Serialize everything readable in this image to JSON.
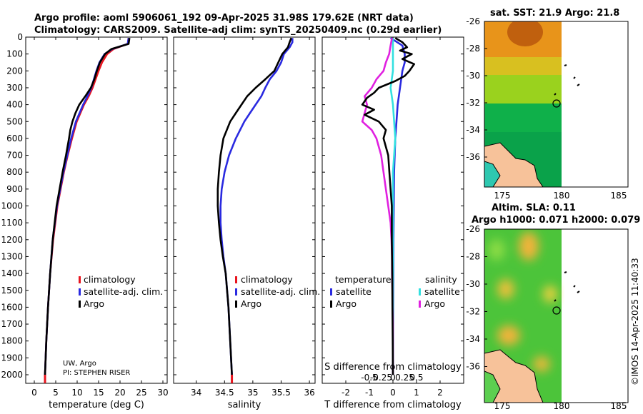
{
  "title": {
    "line1": "Argo profile: aoml 5906061_192 09-Apr-2025 31.98S 179.62E (NRT data)",
    "line2": "Climatology: CARS2009. Satellite-adj clim: synTS_20250409.nc (0.29d earlier)"
  },
  "credit": {
    "line1": "UW, Argo",
    "line2": "PI: STEPHEN RISER"
  },
  "footer": "©IMOS 14-Apr-2025 11:40:33",
  "colors": {
    "argo": "#000000",
    "clim": "#e8141e",
    "sat": "#2a2ae0",
    "sal_sat": "#33e0e0",
    "sal_diff": "#e020e0"
  },
  "chart_data": [
    {
      "id": "temperature",
      "type": "line",
      "xlabel": "temperature (deg C)",
      "xlim": [
        -2,
        31
      ],
      "xticks": [
        0,
        5,
        10,
        15,
        20,
        25,
        30
      ],
      "xtick_labels": [
        "0",
        "5",
        "10",
        "15",
        "20",
        "25",
        "30"
      ],
      "ylim": [
        0,
        2050
      ],
      "yticks": [
        0,
        100,
        200,
        300,
        400,
        500,
        600,
        700,
        800,
        900,
        1000,
        1100,
        1200,
        1300,
        1400,
        1500,
        1600,
        1700,
        1800,
        1900,
        2000
      ],
      "ytick_labels": [
        "0",
        "100",
        "200",
        "300",
        "400",
        "500",
        "600",
        "700",
        "800",
        "900",
        "1000",
        "1100",
        "1200",
        "1300",
        "1400",
        "1500",
        "1600",
        "1700",
        "1800",
        "1900",
        "2000"
      ],
      "legend": [
        "climatology",
        "satellite-adj. clim.",
        "Argo"
      ],
      "series": [
        {
          "name": "climatology",
          "color": "#e8141e",
          "depth": [
            5,
            40,
            70,
            100,
            150,
            200,
            250,
            300,
            350,
            400,
            500,
            600,
            700,
            800,
            1000,
            1200,
            1400,
            1600,
            1800,
            2000
          ],
          "values": [
            22,
            21.8,
            18.5,
            17,
            15.8,
            15,
            14.3,
            13.6,
            12.7,
            11.6,
            9.9,
            8.8,
            7.8,
            6.9,
            5.4,
            4.4,
            3.7,
            3.2,
            2.8,
            2.5
          ]
        },
        {
          "name": "satellite-adj. clim.",
          "color": "#2a2ae0",
          "depth": [
            5,
            40,
            70,
            100,
            150,
            200,
            250,
            300,
            350,
            400,
            500,
            600,
            700,
            800,
            1000,
            1200,
            1400,
            1600,
            1800,
            2000
          ],
          "values": [
            22,
            21.8,
            18.2,
            16.4,
            15.2,
            14.5,
            13.9,
            13.3,
            12.4,
            11.4,
            9.7,
            8.6,
            7.7,
            6.8,
            5.3,
            4.3,
            3.7,
            3.2,
            2.8,
            2.5
          ]
        },
        {
          "name": "Argo",
          "color": "#000000",
          "depth": [
            5,
            40,
            70,
            100,
            150,
            200,
            250,
            300,
            350,
            400,
            450,
            500,
            550,
            600,
            700,
            800,
            1000,
            1200,
            1400,
            1600,
            1800,
            2000
          ],
          "values": [
            22.2,
            22,
            18,
            16.5,
            15.3,
            14.6,
            14,
            13.2,
            11.9,
            10.5,
            9.6,
            8.9,
            8.4,
            8.1,
            7.4,
            6.6,
            5.2,
            4.3,
            3.7,
            3.2,
            2.8,
            2.5
          ]
        }
      ],
      "bottom_marker": {
        "value": 2.5,
        "depth": [
          2000,
          2050
        ]
      }
    },
    {
      "id": "salinity",
      "type": "line",
      "xlabel": "salinity",
      "xlim": [
        33.6,
        36.1
      ],
      "xticks": [
        34,
        34.5,
        35,
        35.5,
        36
      ],
      "xtick_labels": [
        "34",
        "34.5",
        "35",
        "35.5",
        "36"
      ],
      "ylim": [
        0,
        2050
      ],
      "legend": [
        "climatology",
        "satellite-adj. clim.",
        "Argo"
      ],
      "series": [
        {
          "name": "satellite-adj. clim.",
          "color": "#2a2ae0",
          "depth": [
            5,
            30,
            60,
            100,
            150,
            200,
            250,
            300,
            350,
            400,
            450,
            500,
            600,
            700,
            800,
            900,
            1000,
            1100,
            1200,
            1300,
            1400,
            1600,
            1800,
            2000
          ],
          "values": [
            35.7,
            35.7,
            35.65,
            35.55,
            35.5,
            35.42,
            35.3,
            35.22,
            35.15,
            35.05,
            34.95,
            34.85,
            34.7,
            34.58,
            34.5,
            34.45,
            34.43,
            34.43,
            34.45,
            34.48,
            34.52,
            34.57,
            34.6,
            34.63
          ]
        },
        {
          "name": "Argo",
          "color": "#000000",
          "depth": [
            5,
            30,
            60,
            100,
            150,
            200,
            250,
            300,
            350,
            400,
            450,
            500,
            600,
            700,
            800,
            900,
            1000,
            1100,
            1200,
            1300,
            1400,
            1600,
            1800,
            2000
          ],
          "values": [
            35.68,
            35.65,
            35.62,
            35.52,
            35.45,
            35.38,
            35.22,
            35.05,
            34.9,
            34.8,
            34.7,
            34.6,
            34.48,
            34.43,
            34.4,
            34.38,
            34.38,
            34.4,
            34.43,
            34.47,
            34.52,
            34.57,
            34.6,
            34.63
          ]
        }
      ],
      "bottom_marker": {
        "value": 34.63,
        "depth": [
          2000,
          2050
        ]
      }
    },
    {
      "id": "difference",
      "type": "line",
      "xlabel": "T difference from climatology",
      "xlabel_top": "S difference from climatology",
      "xlim": [
        -3,
        3
      ],
      "xticks": [
        -2,
        -1,
        0,
        1,
        2
      ],
      "xtick_labels": [
        "-2",
        "-1",
        "0",
        "1",
        "2"
      ],
      "s_ticks": [
        -0.5,
        -0.25,
        0,
        0.25,
        0.5
      ],
      "s_tick_labels": [
        "-0.5",
        "-0.25",
        "0",
        "0.25",
        "0.5"
      ],
      "s_scale": 2,
      "ylim": [
        0,
        2050
      ],
      "legend_temperature": {
        "header": "temperature",
        "items": [
          "satellite",
          "Argo"
        ]
      },
      "legend_salinity": {
        "header": "salinity",
        "items": [
          "satellite",
          "Argo"
        ]
      },
      "series": [
        {
          "name": "T satellite",
          "color": "#2a2ae0",
          "depth": [
            5,
            50,
            100,
            150,
            200,
            300,
            400,
            600,
            800,
            1200,
            1600,
            2000
          ],
          "values": [
            -0.1,
            0.4,
            0.5,
            0.5,
            0.4,
            0.3,
            0.2,
            0.1,
            0.05,
            0.02,
            0.01,
            0.0
          ]
        },
        {
          "name": "S satellite",
          "color": "#33e0e0",
          "depth": [
            5,
            100,
            200,
            300,
            400,
            600,
            800,
            1200,
            1600,
            2000
          ],
          "values": [
            0.0,
            0.0,
            0.0,
            -0.05,
            0.0,
            0.05,
            0.0,
            0.0,
            0.0,
            0.0
          ]
        },
        {
          "name": "S Argo",
          "color": "#e020e0",
          "depth": [
            5,
            50,
            100,
            150,
            200,
            250,
            300,
            350,
            400,
            450,
            500,
            550,
            600,
            700,
            800,
            900,
            1000,
            1100,
            1200,
            1300,
            1400,
            1500,
            1600,
            1700,
            1800,
            2000
          ],
          "values": [
            -0.02,
            -0.05,
            -0.08,
            -0.15,
            -0.2,
            -0.35,
            -0.45,
            -0.6,
            -0.55,
            -0.6,
            -0.65,
            -0.45,
            -0.35,
            -0.25,
            -0.2,
            -0.15,
            -0.1,
            -0.05,
            -0.03,
            -0.02,
            -0.02,
            -0.01,
            -0.01,
            0.0,
            0.0,
            0.0
          ]
        },
        {
          "name": "T Argo",
          "color": "#000000",
          "depth": [
            5,
            30,
            60,
            80,
            100,
            130,
            160,
            200,
            230,
            260,
            300,
            330,
            360,
            400,
            430,
            460,
            500,
            550,
            600,
            700,
            800,
            900,
            1000,
            1200,
            1400,
            1600,
            1800,
            2000
          ],
          "values": [
            0.1,
            0.4,
            0.6,
            0.3,
            0.8,
            0.4,
            0.9,
            0.7,
            0.5,
            0.1,
            -0.6,
            -0.8,
            -1.1,
            -1.3,
            -0.8,
            -1.2,
            -0.6,
            -0.3,
            -0.4,
            -0.2,
            -0.15,
            -0.1,
            -0.05,
            -0.05,
            -0.03,
            -0.02,
            -0.01,
            0.0
          ]
        }
      ]
    }
  ],
  "maps": {
    "sst": {
      "title": "sat. SST: 21.9 Argo: 21.8",
      "lat_ticks": [
        "-26",
        "-28",
        "-30",
        "-32",
        "-34",
        "-36"
      ],
      "lon_ticks": [
        "175",
        "180",
        "185"
      ],
      "profile": {
        "lon": 179.62,
        "lat": -31.98
      }
    },
    "sla": {
      "title1": "Altim. SLA: 0.11",
      "title2": "Argo h1000: 0.071 h2000: 0.079",
      "lat_ticks": [
        "-26",
        "-28",
        "-30",
        "-32",
        "-34",
        "-36"
      ],
      "lon_ticks": [
        "175",
        "180",
        "185"
      ],
      "profile": {
        "lon": 179.62,
        "lat": -31.98
      }
    }
  }
}
